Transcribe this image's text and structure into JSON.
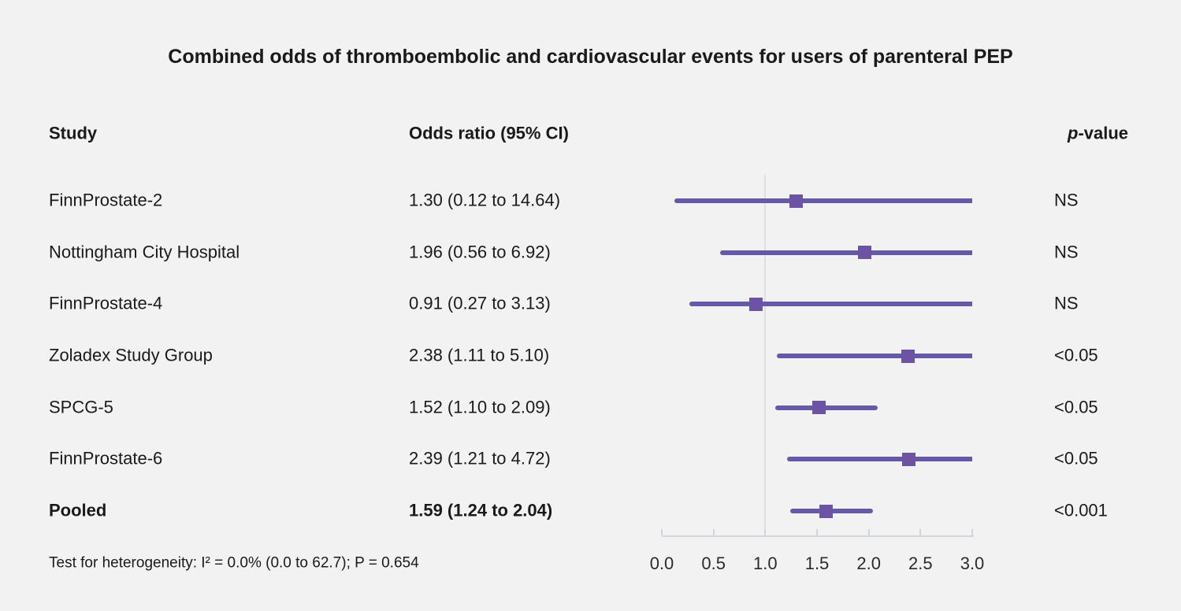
{
  "title": "Combined odds of thromboembolic and cardiovascular events for users of parenteral PEP",
  "columns": {
    "study": "Study",
    "odds_ratio": "Odds ratio (95% CI)",
    "p_value_italic": "p",
    "p_value_rest": "-value"
  },
  "footer": "Test for heterogeneity: I² = 0.0% (0.0 to 62.7); P = 0.654",
  "colors": {
    "background": "#f2f2f2",
    "text": "#1a1a1a",
    "ci_line": "#6659a8",
    "marker": "#6d53a4",
    "reference_line": "#dce0e4",
    "axis": "#d0d6db"
  },
  "chart_data": {
    "type": "forest",
    "title": "Combined odds of thromboembolic and cardiovascular events for users of parenteral PEP",
    "xlim": [
      0.0,
      3.0
    ],
    "reference_value": 1.0,
    "grid": false,
    "ticks": [
      {
        "value": 0.0,
        "label": "0.0"
      },
      {
        "value": 0.5,
        "label": "0.5"
      },
      {
        "value": 1.0,
        "label": "1.0"
      },
      {
        "value": 1.5,
        "label": "1.5"
      },
      {
        "value": 2.0,
        "label": "2.0"
      },
      {
        "value": 2.5,
        "label": "2.5"
      },
      {
        "value": 3.0,
        "label": "3.0"
      }
    ],
    "rows": [
      {
        "study": "FinnProstate-2",
        "or": 1.3,
        "ci_low": 0.12,
        "ci_high": 14.64,
        "or_ci": "1.30 (0.12 to 14.64)",
        "p": "NS",
        "bold": false
      },
      {
        "study": "Nottingham City Hospital",
        "or": 1.96,
        "ci_low": 0.56,
        "ci_high": 6.92,
        "or_ci": "1.96 (0.56 to 6.92)",
        "p": "NS",
        "bold": false
      },
      {
        "study": "FinnProstate-4",
        "or": 0.91,
        "ci_low": 0.27,
        "ci_high": 3.13,
        "or_ci": "0.91 (0.27 to 3.13)",
        "p": "NS",
        "bold": false
      },
      {
        "study": "Zoladex Study Group",
        "or": 2.38,
        "ci_low": 1.11,
        "ci_high": 5.1,
        "or_ci": "2.38 (1.11 to 5.10)",
        "p": "<0.05",
        "bold": false
      },
      {
        "study": "SPCG-5",
        "or": 1.52,
        "ci_low": 1.1,
        "ci_high": 2.09,
        "or_ci": "1.52 (1.10 to 2.09)",
        "p": "<0.05",
        "bold": false
      },
      {
        "study": "FinnProstate-6",
        "or": 2.39,
        "ci_low": 1.21,
        "ci_high": 4.72,
        "or_ci": "2.39 (1.21 to 4.72)",
        "p": "<0.05",
        "bold": false
      },
      {
        "study": "Pooled",
        "or": 1.59,
        "ci_low": 1.24,
        "ci_high": 2.04,
        "or_ci": "1.59 (1.24 to 2.04)",
        "p": "<0.001",
        "bold": true
      }
    ]
  }
}
